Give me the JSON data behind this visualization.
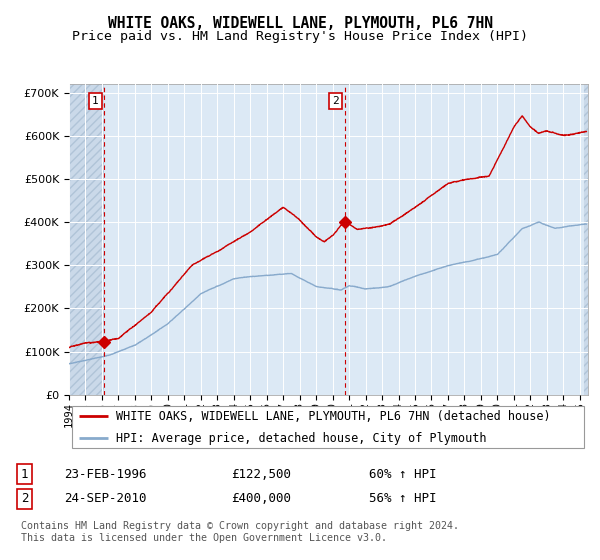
{
  "title": "WHITE OAKS, WIDEWELL LANE, PLYMOUTH, PL6 7HN",
  "subtitle": "Price paid vs. HM Land Registry's House Price Index (HPI)",
  "background_color": "#dce9f5",
  "grid_color": "#ffffff",
  "red_line_color": "#cc0000",
  "blue_line_color": "#88aacc",
  "hatch_bg_color": "#c8d8e8",
  "sale1_date": 1996.15,
  "sale1_price": 122500,
  "sale2_date": 2010.73,
  "sale2_price": 400000,
  "xlim_start": 1994.0,
  "xlim_end": 2025.5,
  "ylim_max": 720000,
  "legend_line1": "WHITE OAKS, WIDEWELL LANE, PLYMOUTH, PL6 7HN (detached house)",
  "legend_line2": "HPI: Average price, detached house, City of Plymouth",
  "table_row1_date": "23-FEB-1996",
  "table_row1_price": "£122,500",
  "table_row1_hpi": "60% ↑ HPI",
  "table_row2_date": "24-SEP-2010",
  "table_row2_price": "£400,000",
  "table_row2_hpi": "56% ↑ HPI",
  "footnote": "Contains HM Land Registry data © Crown copyright and database right 2024.\nThis data is licensed under the Open Government Licence v3.0."
}
